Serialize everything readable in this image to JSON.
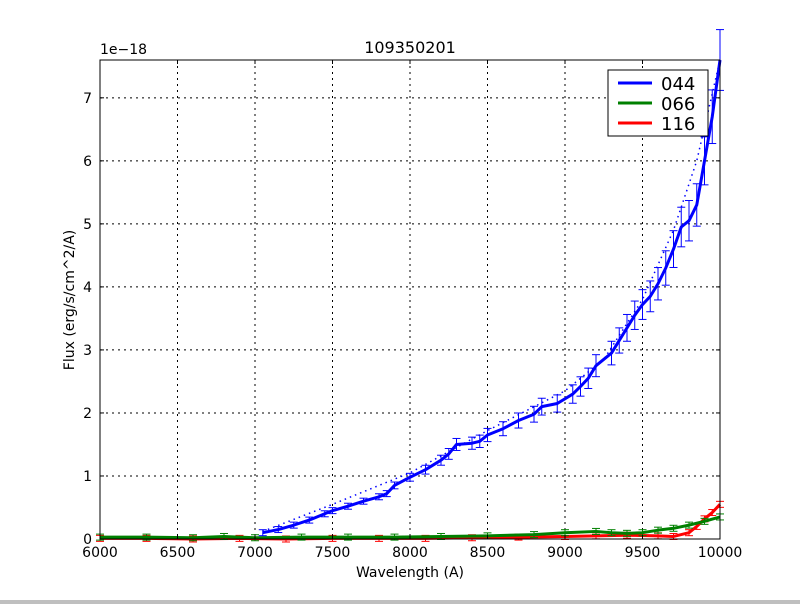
{
  "chart_data": {
    "type": "line",
    "title": "109350201",
    "xlabel": "Wavelength (A)",
    "ylabel": "Flux (erg/s/cm^2/A)",
    "y_offset_label": "1e−18",
    "xlim": [
      6000,
      10000
    ],
    "ylim": [
      0,
      7.6
    ],
    "grid": true,
    "legend_position": "upper right",
    "x_ticks": [
      6000,
      6500,
      7000,
      7500,
      8000,
      8500,
      9000,
      9500,
      10000
    ],
    "y_ticks": [
      0,
      1,
      2,
      3,
      4,
      5,
      6,
      7
    ],
    "series": [
      {
        "name": "044",
        "color": "#0000ff",
        "x": [
          7050,
          7150,
          7250,
          7350,
          7450,
          7500,
          7600,
          7700,
          7800,
          7850,
          7900,
          8000,
          8100,
          8200,
          8250,
          8300,
          8400,
          8450,
          8500,
          8600,
          8700,
          8800,
          8850,
          8950,
          9050,
          9100,
          9150,
          9200,
          9300,
          9350,
          9400,
          9450,
          9500,
          9550,
          9600,
          9650,
          9700,
          9750,
          9800,
          9850,
          9900,
          9950,
          10000
        ],
        "values": [
          0.1,
          0.15,
          0.22,
          0.3,
          0.4,
          0.45,
          0.52,
          0.6,
          0.67,
          0.72,
          0.85,
          0.98,
          1.1,
          1.25,
          1.35,
          1.5,
          1.52,
          1.55,
          1.65,
          1.75,
          1.88,
          1.98,
          2.1,
          2.15,
          2.3,
          2.42,
          2.55,
          2.75,
          2.95,
          3.15,
          3.35,
          3.55,
          3.72,
          3.85,
          4.05,
          4.3,
          4.6,
          4.95,
          5.05,
          5.3,
          6.0,
          6.7,
          7.6
        ]
      },
      {
        "name": "066",
        "color": "#008000",
        "x": [
          6000,
          6300,
          6600,
          6800,
          7000,
          7300,
          7600,
          7900,
          8200,
          8500,
          8800,
          9000,
          9200,
          9300,
          9400,
          9500,
          9600,
          9700,
          9800,
          9900,
          10000
        ],
        "values": [
          0.03,
          0.03,
          0.02,
          0.04,
          0.02,
          0.03,
          0.03,
          0.03,
          0.04,
          0.05,
          0.07,
          0.1,
          0.12,
          0.1,
          0.09,
          0.1,
          0.14,
          0.17,
          0.22,
          0.28,
          0.35
        ]
      },
      {
        "name": "116",
        "color": "#ff0000",
        "x": [
          6000,
          6300,
          6600,
          6900,
          7200,
          7500,
          7800,
          8100,
          8400,
          8700,
          9000,
          9200,
          9400,
          9600,
          9700,
          9800,
          9850,
          9900,
          9950,
          10000
        ],
        "values": [
          0.01,
          0.01,
          0.0,
          0.01,
          0.0,
          0.01,
          0.01,
          0.01,
          0.02,
          0.03,
          0.04,
          0.05,
          0.06,
          0.05,
          0.04,
          0.1,
          0.2,
          0.32,
          0.42,
          0.55
        ]
      }
    ],
    "model_fit": {
      "style": "dotted",
      "color": "#0000ff",
      "x": [
        7050,
        7500,
        8000,
        8500,
        9000,
        9250,
        9500,
        9700,
        9850,
        10000
      ],
      "values": [
        0.12,
        0.55,
        1.05,
        1.72,
        2.35,
        2.85,
        3.8,
        4.9,
        6.0,
        7.6
      ]
    }
  }
}
